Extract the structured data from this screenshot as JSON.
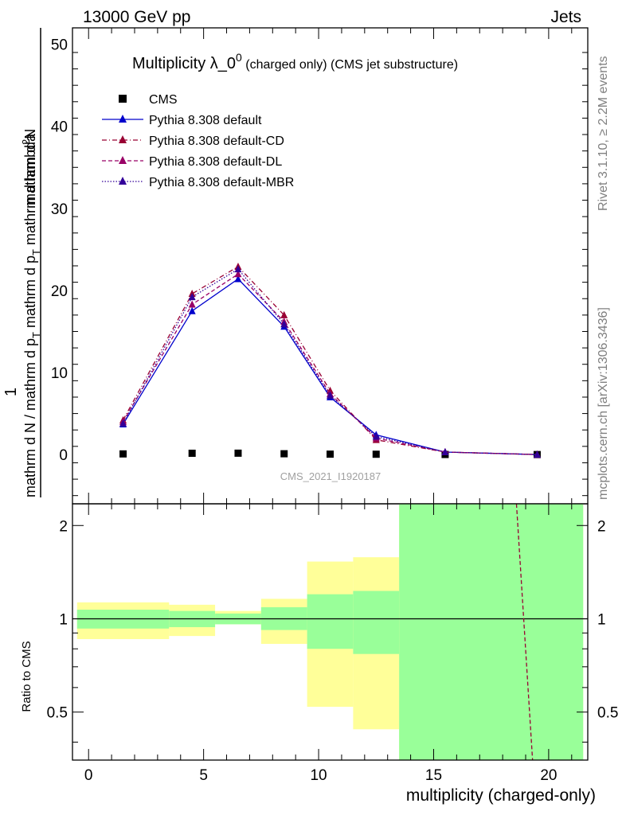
{
  "header": {
    "energy_label": "13000 GeV pp",
    "process_label": "Jets"
  },
  "side_labels": {
    "rivet": "Rivet 3.1.10, ≥ 2.2M events",
    "mcplots": "mcplots.cern.ch [arXiv:1306.3436]"
  },
  "chart_data": [
    {
      "type": "line",
      "title": "Multiplicity λ_0⁰ (charged only) (CMS jet substructure)",
      "title_main": "Multiplicity λ_0",
      "title_sup": "0",
      "title_suffix": " (charged only) (CMS jet substructure)",
      "watermark": "CMS_2021_I1920187",
      "ylabel_top": "1",
      "ylabel_num": "mathrm d²N",
      "ylabel_den": "mathrm d N / mathrm d p_T mathrm d p_T mathrm d lambda",
      "ylabel_den_main": "mathrm d N / mathrm d p",
      "ylabel_den_sub": "T",
      "ylabel_den_mid": " mathrm d p",
      "ylabel_den_end": " mathrm d lambda",
      "ylim": [
        -6,
        52
      ],
      "xlim": [
        -0.7,
        21.7
      ],
      "yticks": [
        0,
        10,
        20,
        30,
        40,
        50
      ],
      "x": [
        1.5,
        4.5,
        6.5,
        8.5,
        10.5,
        12.5,
        15.5,
        19.5
      ],
      "series": [
        {
          "name": "CMS",
          "style": "data",
          "color": "#000000",
          "values": [
            0.08,
            0.16,
            0.17,
            0.1,
            0.05,
            0.04,
            0.01,
            0.0
          ]
        },
        {
          "name": "Pythia 8.308 default",
          "style": "solid",
          "color": "#0000cc",
          "values": [
            3.7,
            17.5,
            21.4,
            15.6,
            7.0,
            2.4,
            0.3,
            0.0
          ]
        },
        {
          "name": "Pythia 8.308 default-CD",
          "style": "dashdot",
          "color": "#990033",
          "values": [
            4.2,
            19.6,
            22.9,
            17.0,
            7.8,
            1.8,
            0.3,
            0.0
          ]
        },
        {
          "name": "Pythia 8.308 default-DL",
          "style": "dashed",
          "color": "#990066",
          "values": [
            4.0,
            18.3,
            22.0,
            16.2,
            7.4,
            2.0,
            0.3,
            0.0
          ]
        },
        {
          "name": "Pythia 8.308 default-MBR",
          "style": "dotted",
          "color": "#330099",
          "values": [
            3.8,
            19.2,
            22.6,
            15.9,
            7.2,
            2.2,
            0.3,
            0.0
          ]
        }
      ]
    },
    {
      "type": "area",
      "ylabel": "Ratio to CMS",
      "xlabel": "multiplicity (charged-only)",
      "log_y": true,
      "ylim": [
        0.35,
        2.35
      ],
      "xlim": [
        -0.7,
        21.7
      ],
      "xticks": [
        0,
        5,
        10,
        15,
        20
      ],
      "yticks": [
        0.5,
        1,
        2
      ],
      "bins": [
        {
          "lo": -0.5,
          "hi": 3.5,
          "stat_lo": 0.93,
          "stat_hi": 1.07,
          "tot_lo": 0.86,
          "tot_hi": 1.13
        },
        {
          "lo": 3.5,
          "hi": 5.5,
          "stat_lo": 0.94,
          "stat_hi": 1.06,
          "tot_lo": 0.88,
          "tot_hi": 1.11
        },
        {
          "lo": 5.5,
          "hi": 7.5,
          "stat_lo": 0.96,
          "stat_hi": 1.04,
          "tot_lo": 0.96,
          "tot_hi": 1.06
        },
        {
          "lo": 7.5,
          "hi": 9.5,
          "stat_lo": 0.92,
          "stat_hi": 1.09,
          "tot_lo": 0.83,
          "tot_hi": 1.16
        },
        {
          "lo": 9.5,
          "hi": 11.5,
          "stat_lo": 0.8,
          "stat_hi": 1.2,
          "tot_lo": 0.52,
          "tot_hi": 1.53
        },
        {
          "lo": 11.5,
          "hi": 13.5,
          "stat_lo": 0.77,
          "stat_hi": 1.23,
          "tot_lo": 0.44,
          "tot_hi": 1.58
        },
        {
          "lo": 13.5,
          "hi": 21.5,
          "stat_lo": 0.3,
          "stat_hi": 2.5,
          "tot_lo": 0.3,
          "tot_hi": 2.5
        }
      ],
      "ratio_line": {
        "name": "Pythia 8.308 default-DL",
        "color": "#990033",
        "x": [
          18.6,
          19.3
        ],
        "values": [
          2.35,
          0.35
        ]
      }
    }
  ]
}
